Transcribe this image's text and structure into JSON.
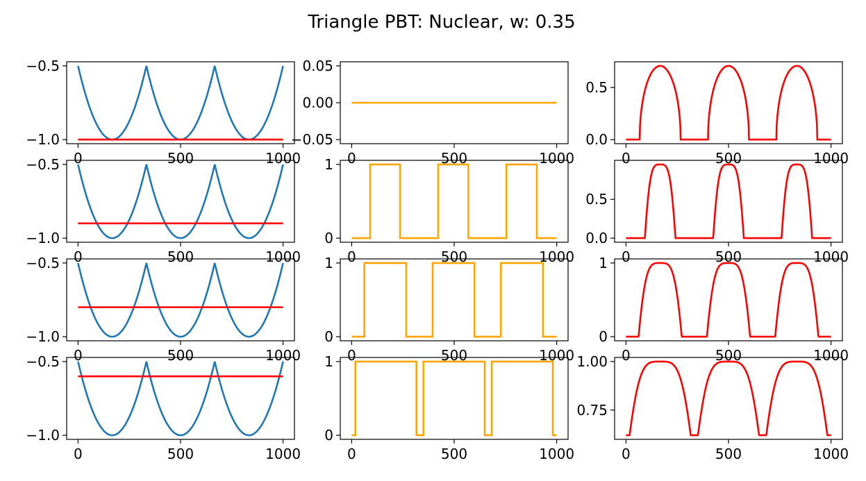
{
  "figure": {
    "title": "Triangle PBT: Nuclear, w: 0.35"
  },
  "chart_data": [
    {
      "type": "line",
      "row": 0,
      "col": 0,
      "xlim": [
        0,
        1000
      ],
      "ylim": [
        -1.0,
        -0.5
      ],
      "xticks": [
        0,
        500,
        1000
      ],
      "xtick_labels": [
        "0",
        "500",
        "1000"
      ],
      "yticks": [
        -1.0,
        -0.5
      ],
      "ytick_labels": [
        "−1.0",
        "−0.5"
      ],
      "series": [
        {
          "color": "#1f77b4",
          "kind": "parabola_wave",
          "period": 333.33,
          "x": [
            0,
            166.67,
            333.33,
            500,
            666.67,
            833.33,
            1000
          ],
          "y": [
            -0.5,
            -1.0,
            -0.5,
            -1.0,
            -0.5,
            -1.0,
            -0.5
          ]
        },
        {
          "color": "#ff0000",
          "kind": "hline",
          "y": -1.0
        }
      ]
    },
    {
      "type": "line",
      "row": 0,
      "col": 1,
      "xlim": [
        0,
        1000
      ],
      "ylim": [
        -0.05,
        0.05
      ],
      "xticks": [
        0,
        500,
        1000
      ],
      "xtick_labels": [
        "0",
        "500",
        "1000"
      ],
      "yticks": [
        -0.05,
        0.0,
        0.05
      ],
      "ytick_labels": [
        "−0.05",
        "0.00",
        "0.05"
      ],
      "series": [
        {
          "color": "#ffa500",
          "kind": "hline",
          "y": 0.0
        }
      ]
    },
    {
      "type": "line",
      "row": 0,
      "col": 2,
      "xlim": [
        0,
        1000
      ],
      "ylim": [
        0,
        0.707
      ],
      "xticks": [
        0,
        500,
        1000
      ],
      "xtick_labels": [
        "0",
        "500",
        "1000"
      ],
      "yticks": [
        0.0,
        0.5
      ],
      "ytick_labels": [
        "0.0",
        "0.5"
      ],
      "series": [
        {
          "color": "#ff0000",
          "kind": "threshold_arc",
          "threshold": -1.0
        }
      ]
    },
    {
      "type": "line",
      "row": 1,
      "col": 0,
      "xlim": [
        0,
        1000
      ],
      "ylim": [
        -1.0,
        -0.5
      ],
      "xticks": [
        0,
        500,
        1000
      ],
      "xtick_labels": [
        "0",
        "500",
        "1000"
      ],
      "yticks": [
        -1.0,
        -0.5
      ],
      "ytick_labels": [
        "−1.0",
        "−0.5"
      ],
      "series": [
        {
          "color": "#1f77b4",
          "kind": "parabola_wave",
          "period": 333.33,
          "x": [
            0,
            166.67,
            333.33,
            500,
            666.67,
            833.33,
            1000
          ],
          "y": [
            -0.5,
            -1.0,
            -0.5,
            -1.0,
            -0.5,
            -1.0,
            -0.5
          ]
        },
        {
          "color": "#ff0000",
          "kind": "hline",
          "y": -0.9
        }
      ]
    },
    {
      "type": "line",
      "row": 1,
      "col": 1,
      "xlim": [
        0,
        1000
      ],
      "ylim": [
        0,
        1
      ],
      "xticks": [
        0,
        500,
        1000
      ],
      "xtick_labels": [
        "0",
        "500",
        "1000"
      ],
      "yticks": [
        0,
        1
      ],
      "ytick_labels": [
        "0",
        "1"
      ],
      "series": [
        {
          "color": "#ffa500",
          "kind": "square",
          "high_intervals": [
            [
              90,
              235
            ],
            [
              422,
              568
            ],
            [
              755,
              902
            ]
          ]
        }
      ]
    },
    {
      "type": "line",
      "row": 1,
      "col": 2,
      "xlim": [
        0,
        1000
      ],
      "ylim": [
        0,
        0.95
      ],
      "xticks": [
        0,
        500,
        1000
      ],
      "xtick_labels": [
        "0",
        "500",
        "1000"
      ],
      "yticks": [
        0.0,
        0.5
      ],
      "ytick_labels": [
        "0.0",
        "0.5"
      ],
      "series": [
        {
          "color": "#ff0000",
          "kind": "threshold_arc",
          "threshold": -0.9
        }
      ]
    },
    {
      "type": "line",
      "row": 2,
      "col": 0,
      "xlim": [
        0,
        1000
      ],
      "ylim": [
        -1.0,
        -0.5
      ],
      "xticks": [
        0,
        500,
        1000
      ],
      "xtick_labels": [
        "0",
        "500",
        "1000"
      ],
      "yticks": [
        -1.0,
        -0.5
      ],
      "ytick_labels": [
        "−1.0",
        "−0.5"
      ],
      "series": [
        {
          "color": "#1f77b4",
          "kind": "parabola_wave",
          "period": 333.33,
          "x": [
            0,
            166.67,
            333.33,
            500,
            666.67,
            833.33,
            1000
          ],
          "y": [
            -0.5,
            -1.0,
            -0.5,
            -1.0,
            -0.5,
            -1.0,
            -0.5
          ]
        },
        {
          "color": "#ff0000",
          "kind": "hline",
          "y": -0.8
        }
      ]
    },
    {
      "type": "line",
      "row": 2,
      "col": 1,
      "xlim": [
        0,
        1000
      ],
      "ylim": [
        0,
        1
      ],
      "xticks": [
        0,
        500,
        1000
      ],
      "xtick_labels": [
        "0",
        "500",
        "1000"
      ],
      "yticks": [
        0,
        1
      ],
      "ytick_labels": [
        "0",
        "1"
      ],
      "series": [
        {
          "color": "#ffa500",
          "kind": "square",
          "high_intervals": [
            [
              62,
              265
            ],
            [
              395,
              598
            ],
            [
              728,
              932
            ]
          ]
        }
      ]
    },
    {
      "type": "line",
      "row": 2,
      "col": 2,
      "xlim": [
        0,
        1000
      ],
      "ylim": [
        0,
        1
      ],
      "xticks": [
        0,
        500,
        1000
      ],
      "xtick_labels": [
        "0",
        "500",
        "1000"
      ],
      "yticks": [
        0,
        1
      ],
      "ytick_labels": [
        "0",
        "1"
      ],
      "series": [
        {
          "color": "#ff0000",
          "kind": "threshold_arc",
          "threshold": -0.8
        }
      ]
    },
    {
      "type": "line",
      "row": 3,
      "col": 0,
      "xlim": [
        0,
        1000
      ],
      "ylim": [
        -1.0,
        -0.5
      ],
      "xticks": [
        0,
        500,
        1000
      ],
      "xtick_labels": [
        "0",
        "500",
        "1000"
      ],
      "yticks": [
        -1.0,
        -0.5
      ],
      "ytick_labels": [
        "−1.0",
        "−0.5"
      ],
      "series": [
        {
          "color": "#1f77b4",
          "kind": "parabola_wave",
          "period": 333.33,
          "x": [
            0,
            166.67,
            333.33,
            500,
            666.67,
            833.33,
            1000
          ],
          "y": [
            -0.5,
            -1.0,
            -0.5,
            -1.0,
            -0.5,
            -1.0,
            -0.5
          ]
        },
        {
          "color": "#ff0000",
          "kind": "hline",
          "y": -0.6
        }
      ]
    },
    {
      "type": "line",
      "row": 3,
      "col": 1,
      "xlim": [
        0,
        1000
      ],
      "ylim": [
        0,
        1
      ],
      "xticks": [
        0,
        500,
        1000
      ],
      "xtick_labels": [
        "0",
        "500",
        "1000"
      ],
      "yticks": [
        0,
        1
      ],
      "ytick_labels": [
        "0",
        "1"
      ],
      "series": [
        {
          "color": "#ffa500",
          "kind": "square",
          "high_intervals": [
            [
              18,
              315
            ],
            [
              350,
              648
            ],
            [
              683,
              980
            ]
          ]
        }
      ]
    },
    {
      "type": "line",
      "row": 3,
      "col": 2,
      "xlim": [
        0,
        1000
      ],
      "ylim": [
        0.62,
        1.0
      ],
      "xticks": [
        0,
        500,
        1000
      ],
      "xtick_labels": [
        "0",
        "500",
        "1000"
      ],
      "yticks": [
        0.75,
        1.0
      ],
      "ytick_labels": [
        "0.75",
        "1.00"
      ],
      "series": [
        {
          "color": "#ff0000",
          "kind": "threshold_arc",
          "threshold": -0.6
        }
      ]
    }
  ]
}
